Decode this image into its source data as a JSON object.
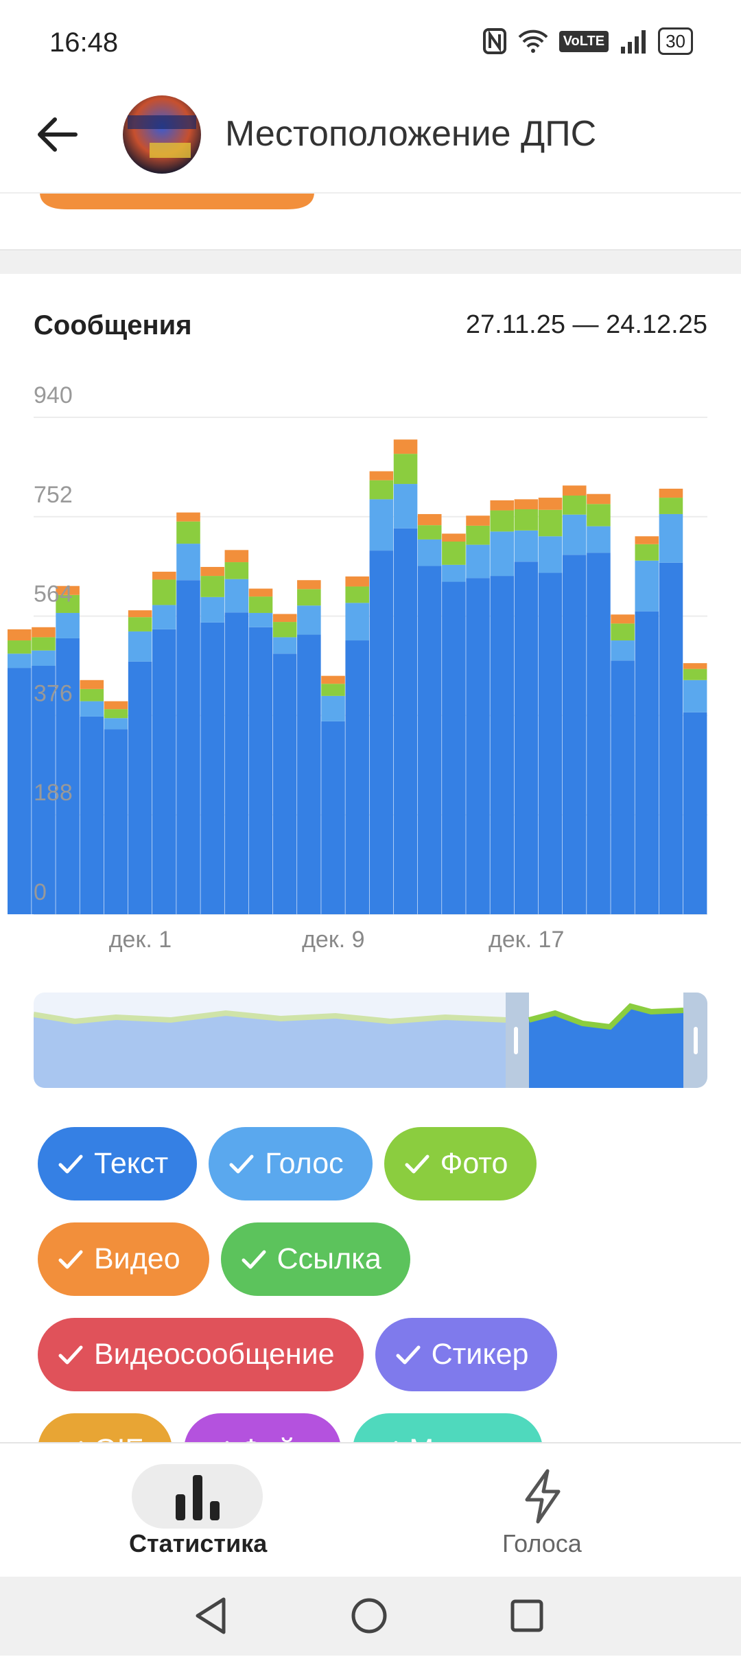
{
  "status_bar": {
    "time": "16:48",
    "network": "VoLTE",
    "battery": "30"
  },
  "header": {
    "title": "Местоположение ДПС"
  },
  "chart_data": {
    "type": "bar",
    "stacked": true,
    "title": "Сообщения",
    "subtitle": "27.11.25 — 24.12.25",
    "categories": [
      null,
      null,
      null,
      null,
      null,
      "дек. 1",
      null,
      null,
      null,
      null,
      null,
      null,
      null,
      "дек. 9",
      null,
      null,
      null,
      null,
      null,
      null,
      null,
      "дек. 17",
      null,
      null,
      null,
      null,
      null,
      null,
      null
    ],
    "series": [
      {
        "name": "Текст",
        "color": "#3580e4",
        "values": [
          466,
          470,
          522,
          374,
          350,
          478,
          539,
          632,
          552,
          571,
          543,
          493,
          529,
          365,
          518,
          688,
          730,
          659,
          629,
          636,
          640,
          667,
          646,
          680,
          684,
          480,
          573,
          665,
          382
        ]
      },
      {
        "name": "Голос",
        "color": "#5aa8ee",
        "values": [
          27,
          29,
          48,
          29,
          21,
          57,
          46,
          69,
          48,
          63,
          27,
          31,
          55,
          48,
          71,
          97,
          84,
          50,
          32,
          63,
          84,
          59,
          69,
          76,
          50,
          38,
          96,
          92,
          61
        ]
      },
      {
        "name": "Фото",
        "color": "#8bcd3f",
        "values": [
          25,
          25,
          34,
          23,
          17,
          27,
          48,
          42,
          40,
          32,
          31,
          29,
          31,
          23,
          31,
          36,
          57,
          27,
          44,
          36,
          40,
          40,
          50,
          36,
          42,
          32,
          31,
          31,
          21
        ]
      },
      {
        "name": "Видео",
        "color": "#f28f3b",
        "values": [
          21,
          19,
          17,
          17,
          15,
          13,
          15,
          17,
          17,
          23,
          15,
          15,
          17,
          15,
          19,
          17,
          27,
          21,
          15,
          19,
          19,
          19,
          23,
          19,
          19,
          17,
          15,
          17,
          11
        ]
      }
    ],
    "ylim": [
      0,
      940
    ],
    "yticks": [
      0,
      188,
      376,
      564,
      752,
      940
    ],
    "grid": true
  },
  "filters": [
    {
      "name": "Ссылка",
      "color": "#5cc35c"
    },
    {
      "name": "Видеосообщение",
      "color": "#e0525a"
    },
    {
      "name": "Стикер",
      "color": "#7f7aec"
    },
    {
      "name": "GIF",
      "color": "#e8a534"
    },
    {
      "name": "Файл",
      "color": "#b452de"
    },
    {
      "name": "Музыка",
      "color": "#4fd9bd"
    }
  ],
  "nav": {
    "items": [
      "Статистика",
      "Голоса"
    ]
  }
}
